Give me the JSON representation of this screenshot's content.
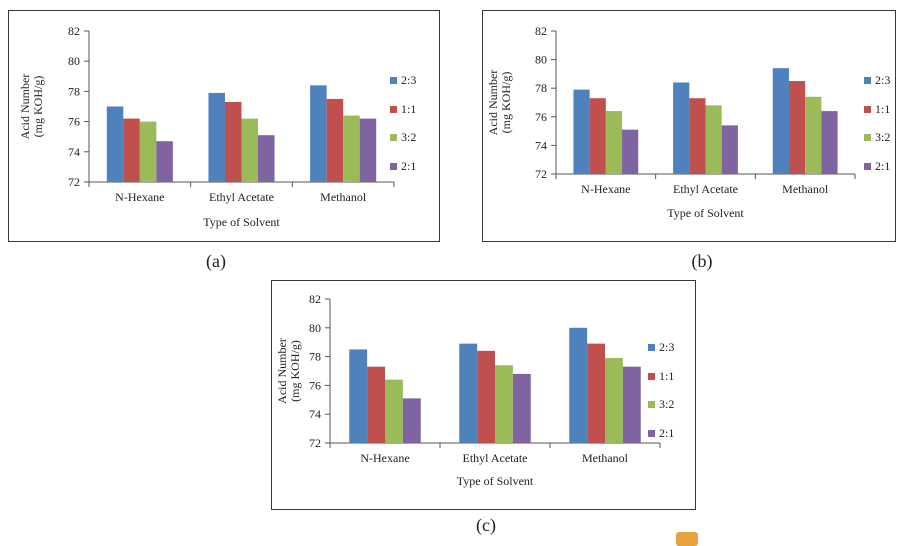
{
  "chart_data": [
    {
      "id": "a",
      "type": "bar",
      "caption": "(a)",
      "categories": [
        "N-Hexane",
        "Ethyl Acetate",
        "Methanol"
      ],
      "series": [
        {
          "name": "2:3",
          "color": "#4f81bd",
          "values": [
            77.0,
            77.9,
            78.4
          ]
        },
        {
          "name": "1:1",
          "color": "#c0504d",
          "values": [
            76.2,
            77.3,
            77.5
          ]
        },
        {
          "name": "3:2",
          "color": "#9bbb59",
          "values": [
            76.0,
            76.2,
            76.4
          ]
        },
        {
          "name": "2:1",
          "color": "#8064a2",
          "values": [
            74.7,
            75.1,
            76.2
          ]
        }
      ],
      "xlabel": "Type of Solvent",
      "ylabel": [
        "Acid Number",
        "(mg KOH/g)"
      ],
      "ylim": [
        72,
        82
      ],
      "yticks": [
        "72",
        "74",
        "76",
        "78",
        "80",
        "82"
      ],
      "legend": "right",
      "grid": false
    },
    {
      "id": "b",
      "type": "bar",
      "caption": "(b)",
      "categories": [
        "N-Hexane",
        "Ethyl Acetate",
        "Methanol"
      ],
      "series": [
        {
          "name": "2:3",
          "color": "#4f81bd",
          "values": [
            77.9,
            78.4,
            79.4
          ]
        },
        {
          "name": "1:1",
          "color": "#c0504d",
          "values": [
            77.3,
            77.3,
            78.5
          ]
        },
        {
          "name": "3:2",
          "color": "#9bbb59",
          "values": [
            76.4,
            76.8,
            77.4
          ]
        },
        {
          "name": "2:1",
          "color": "#8064a2",
          "values": [
            75.1,
            75.4,
            76.4
          ]
        }
      ],
      "xlabel": "Type of Solvent",
      "ylabel": [
        "Acid Number",
        "(mg KOH/g)"
      ],
      "ylim": [
        72,
        82
      ],
      "yticks": [
        "72",
        "74",
        "76",
        "78",
        "80",
        "82"
      ],
      "legend": "right",
      "grid": false
    },
    {
      "id": "c",
      "type": "bar",
      "caption": "(c)",
      "categories": [
        "N-Hexane",
        "Ethyl Acetate",
        "Methanol"
      ],
      "series": [
        {
          "name": "2:3",
          "color": "#4f81bd",
          "values": [
            78.5,
            78.9,
            80.0
          ]
        },
        {
          "name": "1:1",
          "color": "#c0504d",
          "values": [
            77.3,
            78.4,
            78.9
          ]
        },
        {
          "name": "3:2",
          "color": "#9bbb59",
          "values": [
            76.4,
            77.4,
            77.9
          ]
        },
        {
          "name": "2:1",
          "color": "#8064a2",
          "values": [
            75.1,
            76.8,
            77.3
          ]
        }
      ],
      "xlabel": "Type of Solvent",
      "ylabel": [
        "Acid Number",
        "(mg KOH/g)"
      ],
      "ylim": [
        72,
        82
      ],
      "yticks": [
        "72",
        "74",
        "76",
        "78",
        "80",
        "82"
      ],
      "legend": "right",
      "grid": false
    }
  ]
}
